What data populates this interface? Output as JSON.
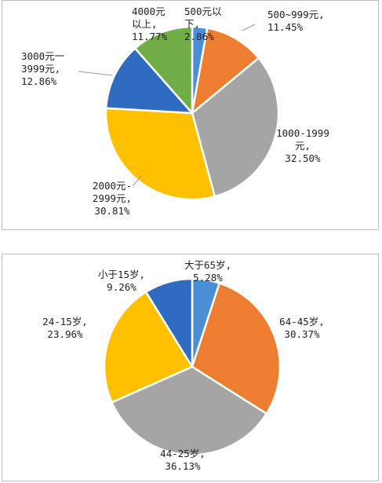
{
  "chart_data": [
    {
      "type": "pie",
      "title": "",
      "slices": [
        {
          "lines": [
            "500元以",
            "下,",
            "2.86%"
          ],
          "value": 2.86,
          "color": "#4a8fd6"
        },
        {
          "lines": [
            "500~999元,",
            "11.45%"
          ],
          "value": 11.45,
          "color": "#ed7d31"
        },
        {
          "lines": [
            "1000-1999",
            "元,",
            "32.50%"
          ],
          "value": 32.5,
          "color": "#a5a5a5"
        },
        {
          "lines": [
            "2000元-",
            "2999元,",
            "30.81%"
          ],
          "value": 30.81,
          "color": "#ffc000"
        },
        {
          "lines": [
            "3000元一",
            "3999元,",
            "12.86%"
          ],
          "value": 12.86,
          "color": "#2f6bc1"
        },
        {
          "lines": [
            "4000元",
            "以上,",
            "11.77%"
          ],
          "value": 11.77,
          "color": "#70ad47"
        }
      ]
    },
    {
      "type": "pie",
      "title": "",
      "slices": [
        {
          "lines": [
            "大于65岁,",
            "5.28%"
          ],
          "value": 5.28,
          "color": "#4a8fd6"
        },
        {
          "lines": [
            "64-45岁,",
            "30.37%"
          ],
          "value": 30.37,
          "color": "#ed7d31"
        },
        {
          "lines": [
            "44-25岁,",
            "36.13%"
          ],
          "value": 36.13,
          "color": "#a5a5a5"
        },
        {
          "lines": [
            "24-15岁,",
            "23.96%"
          ],
          "value": 23.96,
          "color": "#ffc000"
        },
        {
          "lines": [
            "小于15岁,",
            "9.26%"
          ],
          "value": 9.26,
          "color": "#2f6bc1"
        }
      ]
    }
  ]
}
